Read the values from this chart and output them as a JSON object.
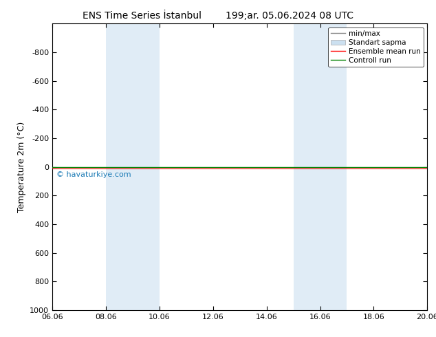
{
  "title": "ENS Time Series İstanbul        199;ar. 05.06.2024 08 UTC",
  "ylabel": "Temperature 2m (°C)",
  "ylim": [
    -1000,
    1000
  ],
  "yticks": [
    -800,
    -600,
    -400,
    -200,
    0,
    200,
    400,
    600,
    800,
    1000
  ],
  "xlim": [
    0,
    14
  ],
  "xtick_labels": [
    "06.06",
    "08.06",
    "10.06",
    "12.06",
    "14.06",
    "16.06",
    "18.06",
    "20.06"
  ],
  "xtick_positions": [
    0,
    2,
    4,
    6,
    8,
    10,
    12,
    14
  ],
  "shaded_regions": [
    {
      "xmin": 2.0,
      "xmax": 4.0
    },
    {
      "xmin": 9.0,
      "xmax": 11.0
    }
  ],
  "shade_color": "#cce0f0",
  "shade_alpha": 0.6,
  "green_line_y": 0,
  "red_line_y": 10,
  "watermark": "© havaturkiye.com",
  "watermark_color": "#1a7ab5",
  "legend_labels": [
    "min/max",
    "Standart sapma",
    "Ensemble mean run",
    "Controll run"
  ],
  "background_color": "#ffffff",
  "title_fontsize": 10,
  "axis_label_fontsize": 9,
  "tick_fontsize": 8,
  "legend_fontsize": 7.5
}
